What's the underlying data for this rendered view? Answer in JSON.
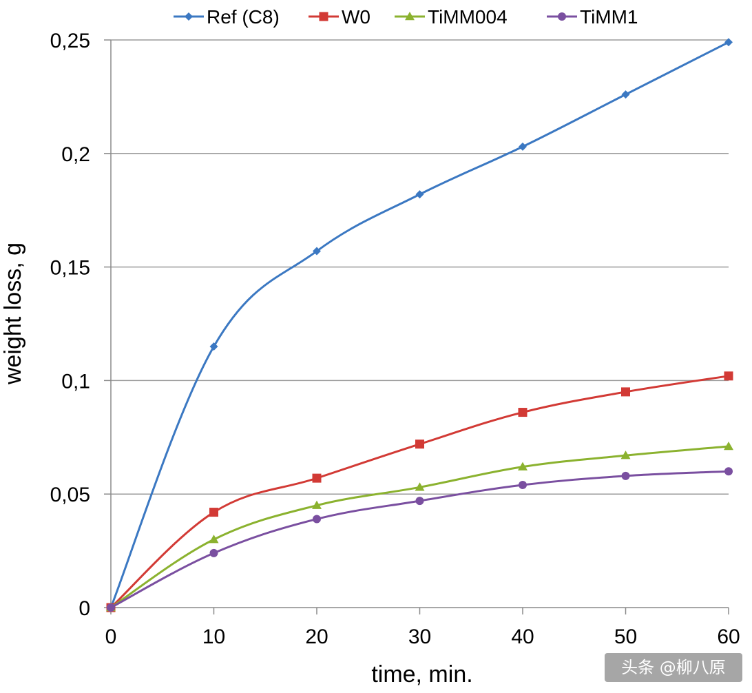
{
  "chart_data": {
    "type": "line",
    "title": "",
    "xlabel": "time, min.",
    "ylabel": "weight loss, g",
    "x": [
      0,
      10,
      20,
      30,
      40,
      50,
      60
    ],
    "xlim": [
      0,
      60
    ],
    "ylim": [
      0,
      0.25
    ],
    "xticks": [
      0,
      10,
      20,
      30,
      40,
      50,
      60
    ],
    "yticks": [
      0,
      0.05,
      0.1,
      0.15,
      0.2,
      0.25
    ],
    "ytick_labels": [
      "0",
      "0,05",
      "0,1",
      "0,15",
      "0,2",
      "0,25"
    ],
    "xtick_labels": [
      "0",
      "10",
      "20",
      "30",
      "40",
      "50",
      "60"
    ],
    "grid": "horizontal",
    "legend_position": "top",
    "series": [
      {
        "name": "Ref (C8)",
        "color": "#3b78c2",
        "marker": "diamond",
        "values": [
          0,
          0.115,
          0.157,
          0.182,
          0.203,
          0.226,
          0.249
        ]
      },
      {
        "name": "W0",
        "color": "#d23a35",
        "marker": "square",
        "values": [
          0,
          0.042,
          0.057,
          0.072,
          0.086,
          0.095,
          0.102
        ]
      },
      {
        "name": "TiMM004",
        "color": "#8bb22f",
        "marker": "triangle",
        "values": [
          0,
          0.03,
          0.045,
          0.053,
          0.062,
          0.067,
          0.071
        ]
      },
      {
        "name": "TiMM1",
        "color": "#7a4fa0",
        "marker": "circle",
        "values": [
          0,
          0.024,
          0.039,
          0.047,
          0.054,
          0.058,
          0.06
        ]
      }
    ]
  },
  "watermark": {
    "text": "头条 @柳八原"
  }
}
